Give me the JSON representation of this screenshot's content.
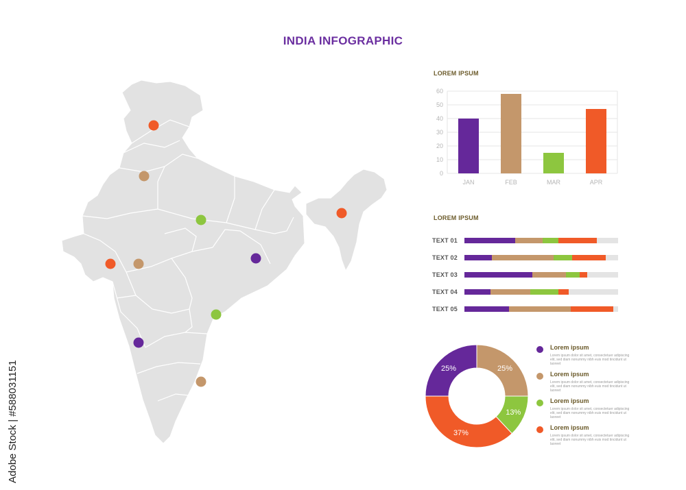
{
  "title": "INDIA INFOGRAPHIC",
  "colors": {
    "title": "#6b2fa0",
    "section_title": "#6b5a2a",
    "map_fill": "#e2e2e2",
    "map_border": "#ffffff",
    "purple": "#65289a",
    "tan": "#c4976b",
    "green": "#8dc63f",
    "orange": "#f05a28",
    "track": "#e4e4e4"
  },
  "map": {
    "markers": [
      {
        "color": "orange"
      },
      {
        "color": "tan"
      },
      {
        "color": "green"
      },
      {
        "color": "purple"
      },
      {
        "color": "orange"
      },
      {
        "color": "tan"
      },
      {
        "color": "orange"
      },
      {
        "color": "green"
      },
      {
        "color": "purple"
      },
      {
        "color": "tan"
      }
    ]
  },
  "bar_section": {
    "title": "LOREM IPSUM"
  },
  "stack_section": {
    "title": "LOREM IPSUM"
  },
  "chart_data": [
    {
      "type": "bar",
      "categories": [
        "JAN",
        "FEB",
        "MAR",
        "APR"
      ],
      "values": [
        40,
        58,
        15,
        47
      ],
      "bar_colors": [
        "#65289a",
        "#c4976b",
        "#8dc63f",
        "#f05a28"
      ],
      "ylim": [
        0,
        60
      ],
      "yticks": [
        0,
        10,
        20,
        30,
        40,
        50,
        60
      ],
      "grid": true
    },
    {
      "type": "bar",
      "orientation": "horizontal-stacked",
      "categories": [
        "TEXT 01",
        "TEXT 02",
        "TEXT 03",
        "TEXT 04",
        "TEXT 05"
      ],
      "series": [
        {
          "color": "#65289a",
          "values": [
            33,
            18,
            44,
            17,
            29
          ]
        },
        {
          "color": "#c4976b",
          "values": [
            18,
            40,
            22,
            26,
            40
          ]
        },
        {
          "color": "#8dc63f",
          "values": [
            10,
            12,
            9,
            18,
            0
          ]
        },
        {
          "color": "#f05a28",
          "values": [
            25,
            22,
            5,
            7,
            28
          ]
        }
      ],
      "total": 100
    },
    {
      "type": "pie",
      "style": "donut",
      "slices": [
        {
          "label": "25%",
          "value": 25,
          "color": "#c4976b"
        },
        {
          "label": "13%",
          "value": 13,
          "color": "#8dc63f"
        },
        {
          "label": "37%",
          "value": 37,
          "color": "#f05a28"
        },
        {
          "label": "25%",
          "value": 25,
          "color": "#65289a"
        }
      ]
    }
  ],
  "legend": [
    {
      "title": "Lorem ipsum",
      "desc": "Lorem ipsum dolor sit amet, consectetuer adipiscing elit, sed diam nonummy nibh euis mod tincidunt ut laoreet",
      "color": "#65289a"
    },
    {
      "title": "Lorem ipsum",
      "desc": "Lorem ipsum dolor sit amet, consectetuer adipiscing elit, sed diam nonummy nibh euis mod tincidunt ut laoreet",
      "color": "#c4976b"
    },
    {
      "title": "Lorem ipsum",
      "desc": "Lorem ipsum dolor sit amet, consectetuer adipiscing elit, sed diam nonummy nibh euis mod tincidunt ut laoreet",
      "color": "#8dc63f"
    },
    {
      "title": "Lorem ipsum",
      "desc": "Lorem ipsum dolor sit amet, consectetuer adipiscing elit, sed diam nonummy nibh euis mod tincidunt ut laoreet",
      "color": "#f05a28"
    }
  ],
  "stock_id": "Adobe Stock | #588031151"
}
